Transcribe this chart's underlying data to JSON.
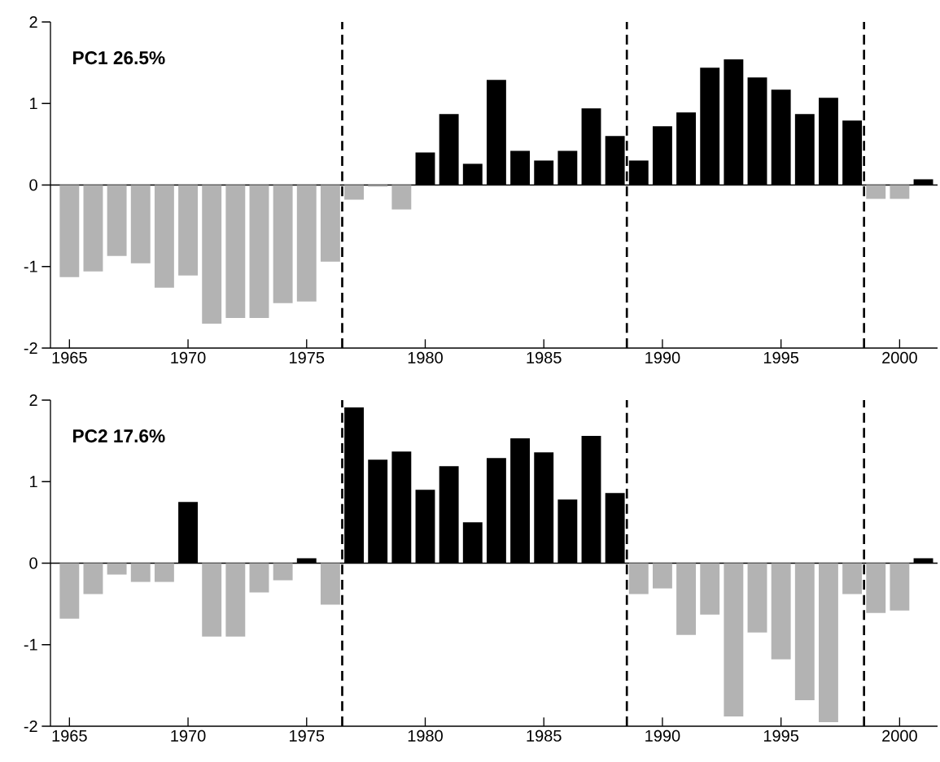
{
  "chart_data": [
    {
      "type": "bar",
      "title": "PC1 26.5%",
      "x": [
        1965,
        1966,
        1967,
        1968,
        1969,
        1970,
        1971,
        1972,
        1973,
        1974,
        1975,
        1976,
        1977,
        1978,
        1979,
        1980,
        1981,
        1982,
        1983,
        1984,
        1985,
        1986,
        1987,
        1988,
        1989,
        1990,
        1991,
        1992,
        1993,
        1994,
        1995,
        1996,
        1997,
        1998,
        1999,
        2000,
        2001
      ],
      "values": [
        -1.13,
        -1.06,
        -0.87,
        -0.96,
        -1.26,
        -1.11,
        -1.7,
        -1.63,
        -1.63,
        -1.45,
        -1.43,
        -0.94,
        -0.18,
        -0.02,
        -0.3,
        0.4,
        0.87,
        0.26,
        1.29,
        0.42,
        0.3,
        0.42,
        0.94,
        0.6,
        0.3,
        0.72,
        0.89,
        1.44,
        1.54,
        1.32,
        1.17,
        0.87,
        1.07,
        0.79,
        -0.17,
        -0.17,
        0.07
      ],
      "colors": [
        "#b3b3b3",
        "#b3b3b3",
        "#b3b3b3",
        "#b3b3b3",
        "#b3b3b3",
        "#b3b3b3",
        "#b3b3b3",
        "#b3b3b3",
        "#b3b3b3",
        "#b3b3b3",
        "#b3b3b3",
        "#b3b3b3",
        "#b3b3b3",
        "#b3b3b3",
        "#b3b3b3",
        "#000000",
        "#000000",
        "#000000",
        "#000000",
        "#000000",
        "#000000",
        "#000000",
        "#000000",
        "#000000",
        "#000000",
        "#000000",
        "#000000",
        "#000000",
        "#000000",
        "#000000",
        "#000000",
        "#000000",
        "#000000",
        "#000000",
        "#b3b3b3",
        "#b3b3b3",
        "#000000"
      ],
      "xlim": [
        1964.2,
        2001.6
      ],
      "ylim": [
        -2,
        2
      ],
      "xticks": [
        1965,
        1970,
        1975,
        1980,
        1985,
        1990,
        1995,
        2000
      ],
      "yticks": [
        -2,
        -1,
        0,
        1,
        2
      ],
      "ref_lines": [
        {
          "axis": "y",
          "value": 0,
          "color": "#000000",
          "line_style": "solid"
        },
        {
          "axis": "x",
          "value": 1976.5,
          "color": "#000000",
          "line_style": "dashed"
        },
        {
          "axis": "x",
          "value": 1988.5,
          "color": "#000000",
          "line_style": "dashed"
        },
        {
          "axis": "x",
          "value": 1998.5,
          "color": "#000000",
          "line_style": "dashed"
        }
      ]
    },
    {
      "type": "bar",
      "title": "PC2 17.6%",
      "x": [
        1965,
        1966,
        1967,
        1968,
        1969,
        1970,
        1971,
        1972,
        1973,
        1974,
        1975,
        1976,
        1977,
        1978,
        1979,
        1980,
        1981,
        1982,
        1983,
        1984,
        1985,
        1986,
        1987,
        1988,
        1989,
        1990,
        1991,
        1992,
        1993,
        1994,
        1995,
        1996,
        1997,
        1998,
        1999,
        2000,
        2001
      ],
      "values": [
        -0.68,
        -0.38,
        -0.14,
        -0.23,
        -0.23,
        0.75,
        -0.9,
        -0.9,
        -0.36,
        -0.21,
        0.06,
        -0.51,
        1.91,
        1.27,
        1.37,
        0.9,
        1.19,
        0.5,
        1.29,
        1.53,
        1.36,
        0.78,
        1.56,
        0.86,
        -0.38,
        -0.31,
        -0.88,
        -0.63,
        -1.88,
        -0.85,
        -1.18,
        -1.68,
        -1.95,
        -0.38,
        -0.61,
        -0.58,
        0.06
      ],
      "colors": [
        "#b3b3b3",
        "#b3b3b3",
        "#b3b3b3",
        "#b3b3b3",
        "#b3b3b3",
        "#000000",
        "#b3b3b3",
        "#b3b3b3",
        "#b3b3b3",
        "#b3b3b3",
        "#000000",
        "#b3b3b3",
        "#000000",
        "#000000",
        "#000000",
        "#000000",
        "#000000",
        "#000000",
        "#000000",
        "#000000",
        "#000000",
        "#000000",
        "#000000",
        "#000000",
        "#b3b3b3",
        "#b3b3b3",
        "#b3b3b3",
        "#b3b3b3",
        "#b3b3b3",
        "#b3b3b3",
        "#b3b3b3",
        "#b3b3b3",
        "#b3b3b3",
        "#b3b3b3",
        "#b3b3b3",
        "#b3b3b3",
        "#000000"
      ],
      "xlim": [
        1964.2,
        2001.6
      ],
      "ylim": [
        -2,
        2
      ],
      "xticks": [
        1965,
        1970,
        1975,
        1980,
        1985,
        1990,
        1995,
        2000
      ],
      "yticks": [
        -2,
        -1,
        0,
        1,
        2
      ],
      "ref_lines": [
        {
          "axis": "y",
          "value": 0,
          "color": "#000000",
          "line_style": "solid"
        },
        {
          "axis": "x",
          "value": 1976.5,
          "color": "#000000",
          "line_style": "dashed"
        },
        {
          "axis": "x",
          "value": 1988.5,
          "color": "#000000",
          "line_style": "dashed"
        },
        {
          "axis": "x",
          "value": 1998.5,
          "color": "#000000",
          "line_style": "dashed"
        }
      ]
    }
  ]
}
